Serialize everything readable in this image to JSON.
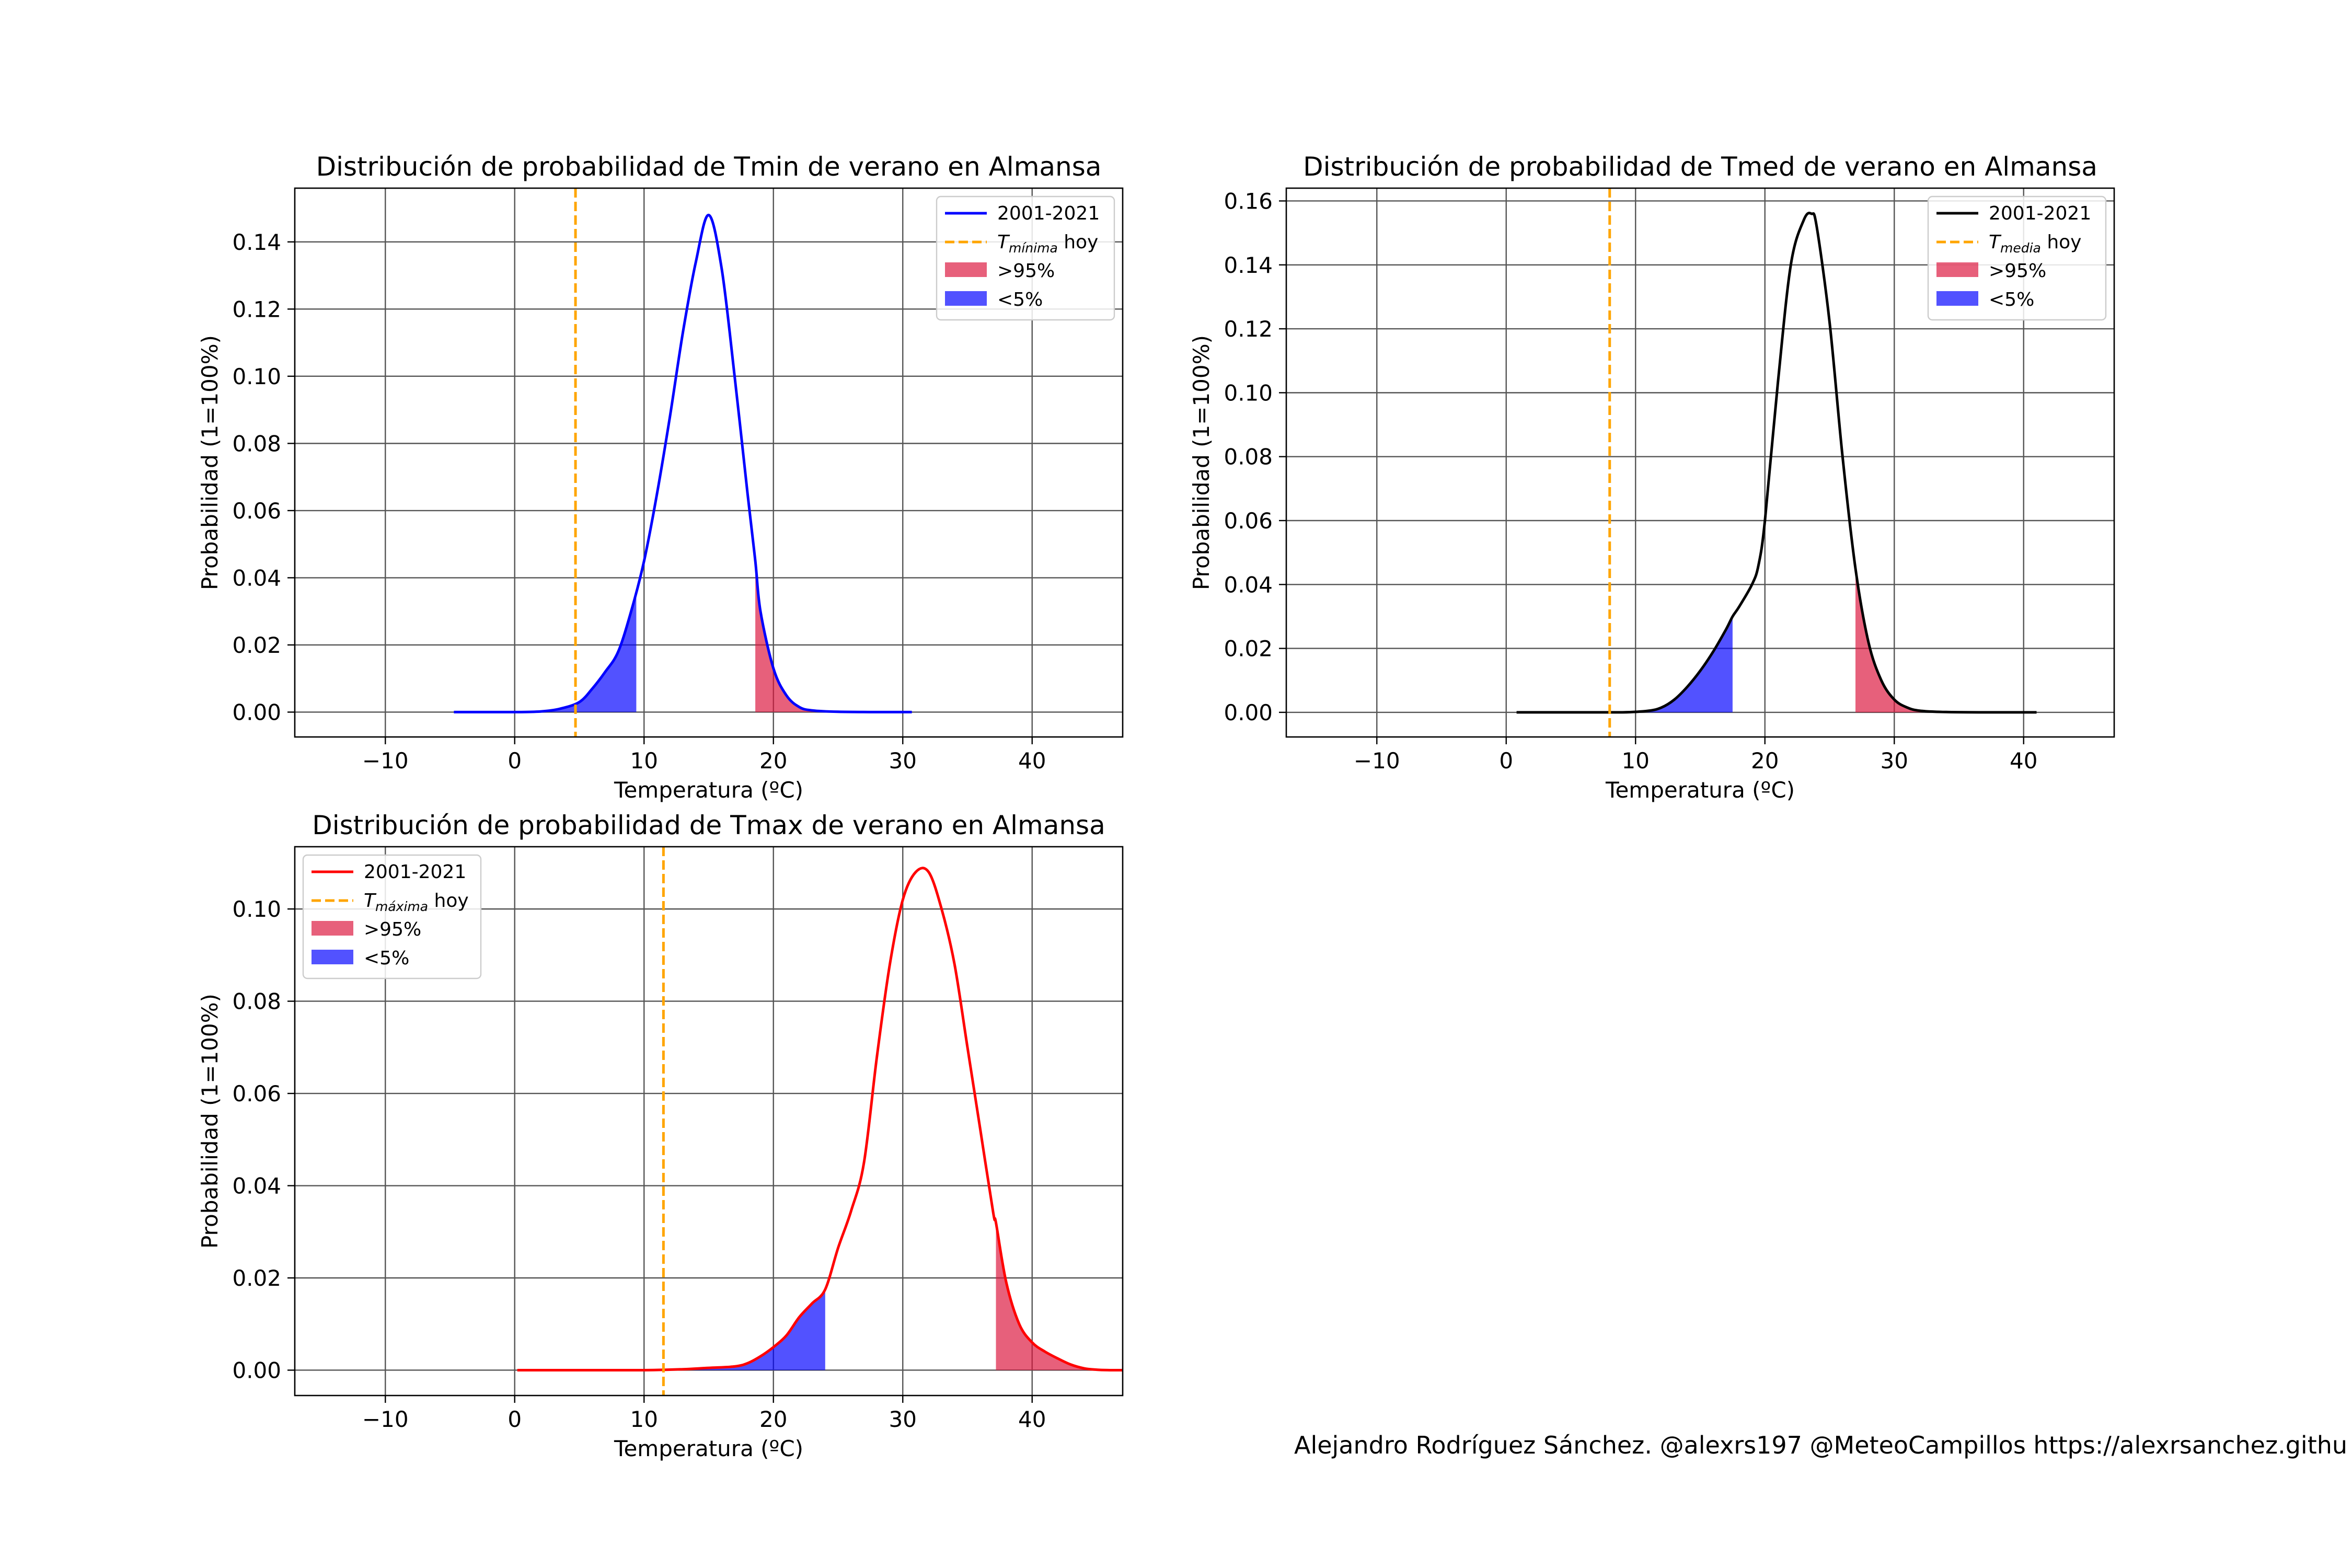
{
  "credit": "Alejandro Rodríguez Sánchez. @alexrs197 @MeteoCampillos   https://alexrsanchez.githu",
  "colors": {
    "today_line": "#ffa500",
    "upper_fill": "#dc143c",
    "lower_fill": "#0000ff",
    "grid": "#555555"
  },
  "chart_data": [
    {
      "type": "line",
      "title": "Distribución de probabilidad de Tmin de verano en Almansa",
      "xlabel": "Temperatura (ºC)",
      "ylabel": "Probabilidad (1=100%)",
      "xlim": [
        -17,
        47
      ],
      "ylim": [
        -0.0074,
        0.156
      ],
      "xticks": [
        -10,
        0,
        10,
        20,
        30,
        40
      ],
      "yticks": [
        0.0,
        0.02,
        0.04,
        0.06,
        0.08,
        0.1,
        0.12,
        0.14
      ],
      "ytick_labels": [
        "0.00",
        "0.02",
        "0.04",
        "0.06",
        "0.08",
        "0.10",
        "0.12",
        "0.14"
      ],
      "grid": true,
      "legend_position": "top-right",
      "line_color": "#0000ff",
      "today_value": 4.7,
      "lower_threshold": 9.4,
      "upper_threshold": 18.6,
      "legend": {
        "series": "2001-2021",
        "today_label_main": "T",
        "today_label_sub": "mínima",
        "today_label_rest": "hoy",
        "upper": ">95%",
        "lower": "<5%"
      },
      "series": [
        {
          "name": "2001-2021",
          "x": [
            -4.7,
            0,
            2,
            3.5,
            5,
            6,
            7,
            8,
            9,
            10,
            11,
            12,
            13,
            14,
            15,
            16,
            17,
            18,
            18.6,
            19,
            20,
            21,
            22,
            23,
            25,
            28,
            30.7
          ],
          "y": [
            0,
            0,
            0.0002,
            0.001,
            0.003,
            0.007,
            0.012,
            0.018,
            0.03,
            0.045,
            0.065,
            0.088,
            0.113,
            0.134,
            0.148,
            0.132,
            0.1,
            0.065,
            0.045,
            0.03,
            0.013,
            0.005,
            0.0015,
            0.0005,
            0.0001,
            0,
            0
          ]
        }
      ]
    },
    {
      "type": "line",
      "title": "Distribución de probabilidad de Tmed de verano en Almansa",
      "xlabel": "Temperatura (ºC)",
      "ylabel": "Probabilidad (1=100%)",
      "xlim": [
        -17,
        47
      ],
      "ylim": [
        -0.0077,
        0.164
      ],
      "xticks": [
        -10,
        0,
        10,
        20,
        30,
        40
      ],
      "yticks": [
        0.0,
        0.02,
        0.04,
        0.06,
        0.08,
        0.1,
        0.12,
        0.14,
        0.16
      ],
      "ytick_labels": [
        "0.00",
        "0.02",
        "0.04",
        "0.06",
        "0.08",
        "0.10",
        "0.12",
        "0.14",
        "0.16"
      ],
      "grid": true,
      "legend_position": "top-right",
      "line_color": "#000000",
      "today_value": 8.0,
      "lower_threshold": 17.5,
      "upper_threshold": 27.0,
      "legend": {
        "series": "2001-2021",
        "today_label_main": "T",
        "today_label_sub": "media",
        "today_label_rest": "hoy",
        "upper": ">95%",
        "lower": "<5%"
      },
      "series": [
        {
          "name": "2001-2021",
          "x": [
            0.8,
            5,
            9,
            11,
            12,
            13,
            14,
            15,
            16,
            17,
            17.5,
            18,
            19,
            19.5,
            20,
            21,
            22,
            23,
            23.6,
            24,
            25,
            26,
            27,
            28,
            29,
            30,
            31,
            32,
            34,
            37,
            41
          ],
          "y": [
            0,
            0,
            0,
            0.0005,
            0.0015,
            0.004,
            0.008,
            0.013,
            0.019,
            0.026,
            0.03,
            0.033,
            0.04,
            0.046,
            0.06,
            0.103,
            0.14,
            0.154,
            0.156,
            0.152,
            0.122,
            0.08,
            0.045,
            0.022,
            0.01,
            0.004,
            0.0015,
            0.0005,
            0.0001,
            0,
            0
          ]
        }
      ]
    },
    {
      "type": "line",
      "title": "Distribución de probabilidad de Tmax de verano en Almansa",
      "xlabel": "Temperatura (ºC)",
      "ylabel": "Probabilidad (1=100%)",
      "xlim": [
        -17,
        47
      ],
      "ylim": [
        -0.0055,
        0.1135
      ],
      "xticks": [
        -10,
        0,
        10,
        20,
        30,
        40
      ],
      "yticks": [
        0.0,
        0.02,
        0.04,
        0.06,
        0.08,
        0.1
      ],
      "ytick_labels": [
        "0.00",
        "0.02",
        "0.04",
        "0.06",
        "0.08",
        "0.10"
      ],
      "grid": true,
      "legend_position": "top-left",
      "line_color": "#ff0000",
      "today_value": 11.5,
      "lower_threshold": 24.0,
      "upper_threshold": 37.2,
      "legend": {
        "series": "2001-2021",
        "today_label_main": "T",
        "today_label_sub": "máxima",
        "today_label_rest": "hoy",
        "upper": ">95%",
        "lower": "<5%"
      },
      "series": [
        {
          "name": "2001-2021",
          "x": [
            0.2,
            5,
            10,
            13,
            15,
            17,
            18,
            19,
            20,
            21,
            22,
            23,
            24,
            25,
            26,
            27,
            28,
            29,
            30,
            31,
            32,
            33,
            34,
            35,
            36,
            37,
            37.2,
            38,
            39,
            40,
            41,
            42,
            43,
            44,
            45,
            46,
            47
          ],
          "y": [
            0,
            0,
            0,
            0.0002,
            0.0005,
            0.0008,
            0.0015,
            0.003,
            0.005,
            0.0075,
            0.0115,
            0.0145,
            0.0175,
            0.0265,
            0.0345,
            0.045,
            0.068,
            0.088,
            0.102,
            0.108,
            0.108,
            0.1,
            0.088,
            0.07,
            0.052,
            0.034,
            0.032,
            0.019,
            0.01,
            0.006,
            0.004,
            0.0025,
            0.0012,
            0.0004,
            0.0001,
            0,
            0
          ]
        }
      ]
    }
  ]
}
